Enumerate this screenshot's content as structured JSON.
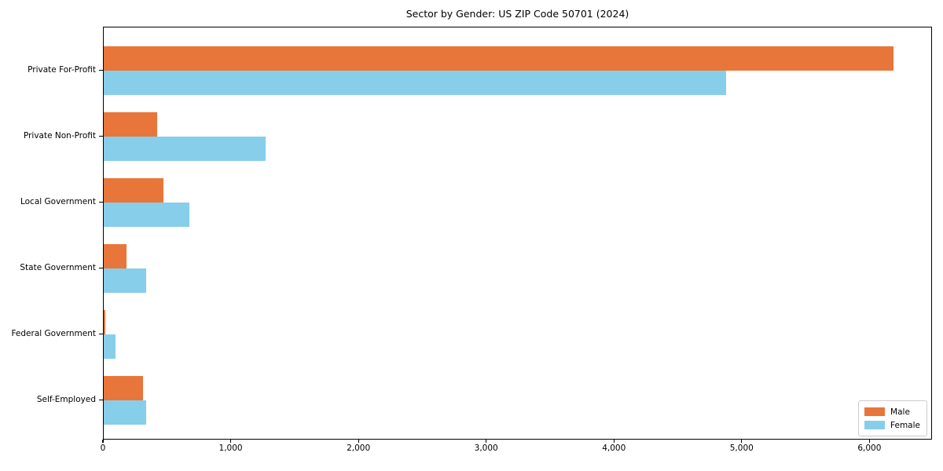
{
  "chart_data": {
    "type": "bar",
    "orientation": "horizontal",
    "title": "Sector by Gender: US ZIP Code 50701 (2024)",
    "categories": [
      "Private For-Profit",
      "Private Non-Profit",
      "Local Government",
      "State Government",
      "Federal Government",
      "Self-Employed"
    ],
    "series": [
      {
        "name": "Male",
        "color": "#e8763b",
        "values": [
          6180,
          420,
          465,
          180,
          12,
          310
        ]
      },
      {
        "name": "Female",
        "color": "#87ceeb",
        "values": [
          4870,
          1265,
          670,
          335,
          90,
          335
        ]
      }
    ],
    "xlabel": "",
    "ylabel": "",
    "xlim": [
      0,
      6490
    ],
    "xticks": {
      "values": [
        0,
        1000,
        2000,
        3000,
        4000,
        5000,
        6000
      ],
      "labels": [
        "0",
        "1,000",
        "2,000",
        "3,000",
        "4,000",
        "5,000",
        "6,000"
      ]
    },
    "grid": false,
    "legend": {
      "position": "lower right"
    }
  }
}
